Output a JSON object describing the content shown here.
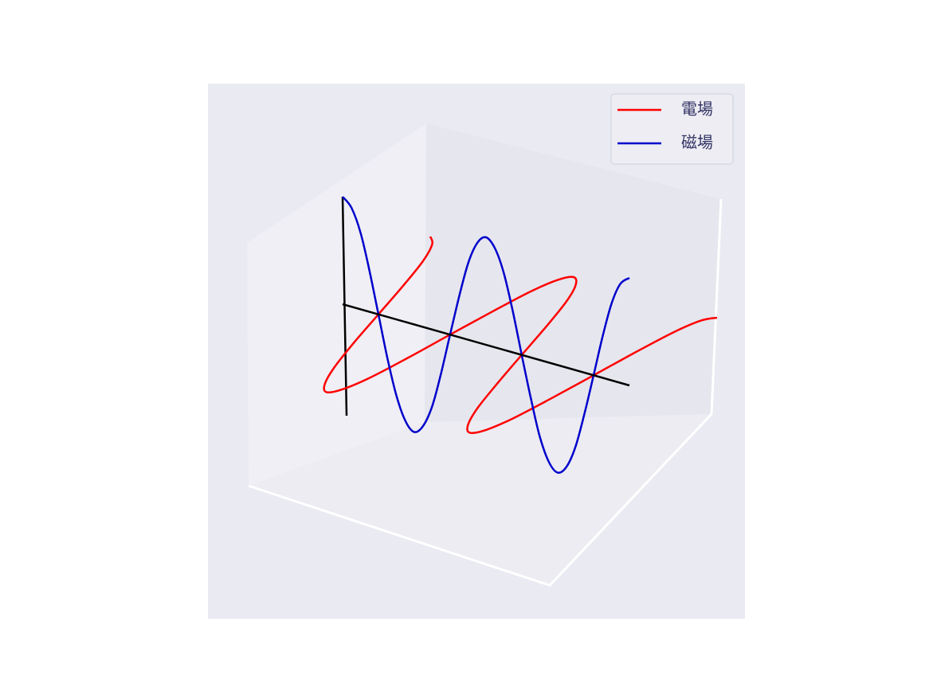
{
  "chart_data": {
    "type": "line3d",
    "x": [
      0,
      0.39,
      0.79,
      1.18,
      1.57,
      1.96,
      2.36,
      2.75,
      3.14,
      3.53,
      3.93,
      4.32,
      4.71,
      5.11,
      5.5,
      5.89,
      6.28,
      6.68,
      7.07,
      7.46,
      7.85,
      8.25,
      8.64,
      9.03,
      9.42,
      9.82,
      10.21,
      10.6,
      11.0,
      11.39,
      11.78,
      12.17,
      12.57
    ],
    "series": [
      {
        "name": "電場",
        "color": "#ff0000",
        "values": [
          1,
          0.92,
          0.71,
          0.38,
          0,
          -0.38,
          -0.71,
          -0.92,
          -1,
          -0.92,
          -0.71,
          -0.38,
          0,
          0.38,
          0.71,
          0.92,
          1,
          0.92,
          0.71,
          0.38,
          0,
          -0.38,
          -0.71,
          -0.92,
          -1,
          -0.92,
          -0.71,
          -0.38,
          0,
          0.38,
          0.71,
          0.92,
          1
        ]
      },
      {
        "name": "磁場",
        "color": "#0000cc",
        "values": [
          1,
          0.92,
          0.71,
          0.38,
          0,
          -0.38,
          -0.71,
          -0.92,
          -1,
          -0.92,
          -0.71,
          -0.38,
          0,
          0.38,
          0.71,
          0.92,
          1,
          0.92,
          0.71,
          0.38,
          0,
          -0.38,
          -0.71,
          -0.92,
          -1,
          -0.92,
          -0.71,
          -0.38,
          0,
          0.38,
          0.71,
          0.92,
          1
        ]
      }
    ],
    "legend": "upper right"
  }
}
